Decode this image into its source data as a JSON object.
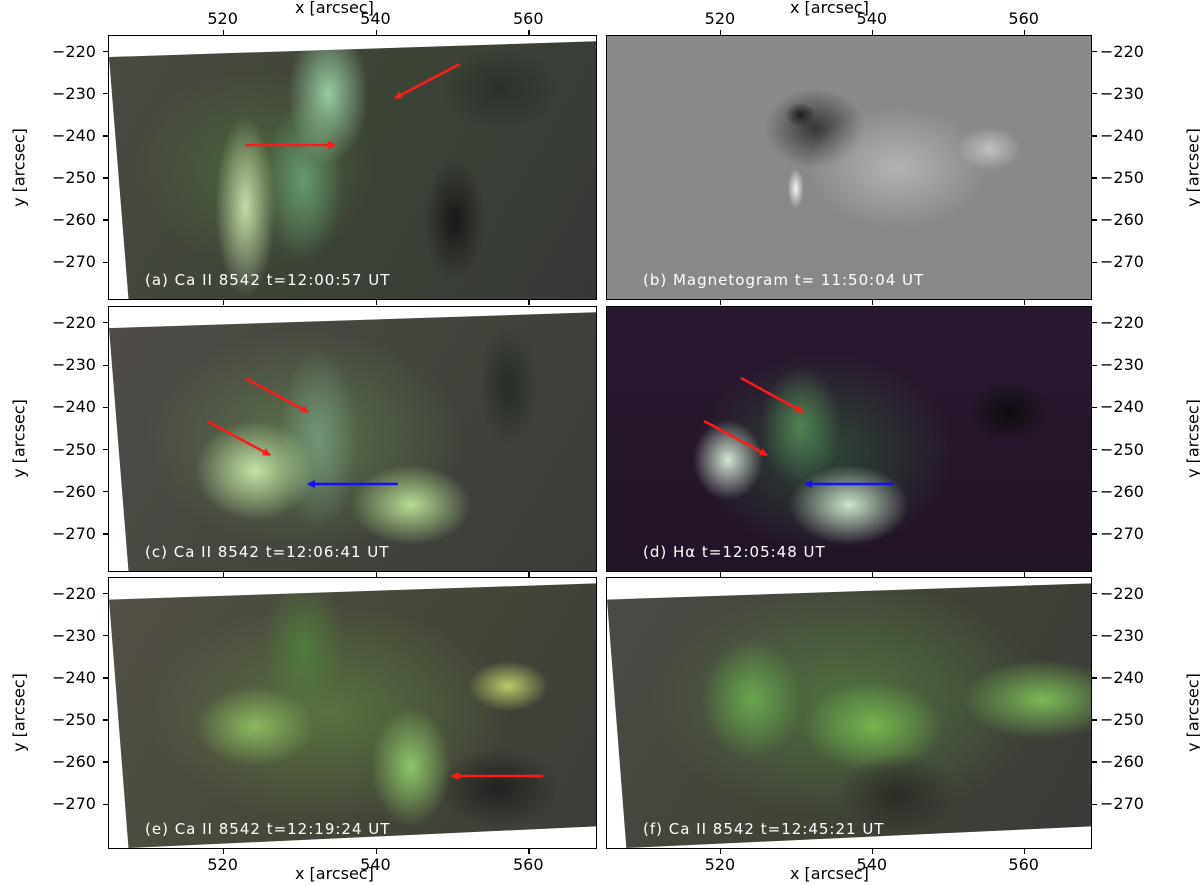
{
  "figure": {
    "x_axis_label": "x [arcsec]",
    "y_axis_label": "y [arcsec]",
    "x_ticks": [
      520,
      540,
      560
    ],
    "y_ticks": [
      -220,
      -230,
      -240,
      -250,
      -260,
      -270
    ],
    "xlim": [
      504.9,
      568.9
    ],
    "ylim": [
      -216,
      -279
    ],
    "arrow_colors": {
      "red": "#ff1a1a",
      "blue": "#1010ff"
    },
    "panels": [
      {
        "id": "a",
        "label": "(a) Ca II 8542 t=12:00:57 UT"
      },
      {
        "id": "b",
        "label": "(b) Magnetogram t= 11:50:04 UT"
      },
      {
        "id": "c",
        "label": "(c) Ca II 8542 t=12:06:41 UT"
      },
      {
        "id": "d",
        "label": "(d) Hα t=12:05:48 UT"
      },
      {
        "id": "e",
        "label": "(e) Ca II 8542 t=12:19:24 UT"
      },
      {
        "id": "f",
        "label": "(f) Ca II 8542 t=12:45:21 UT"
      }
    ]
  }
}
